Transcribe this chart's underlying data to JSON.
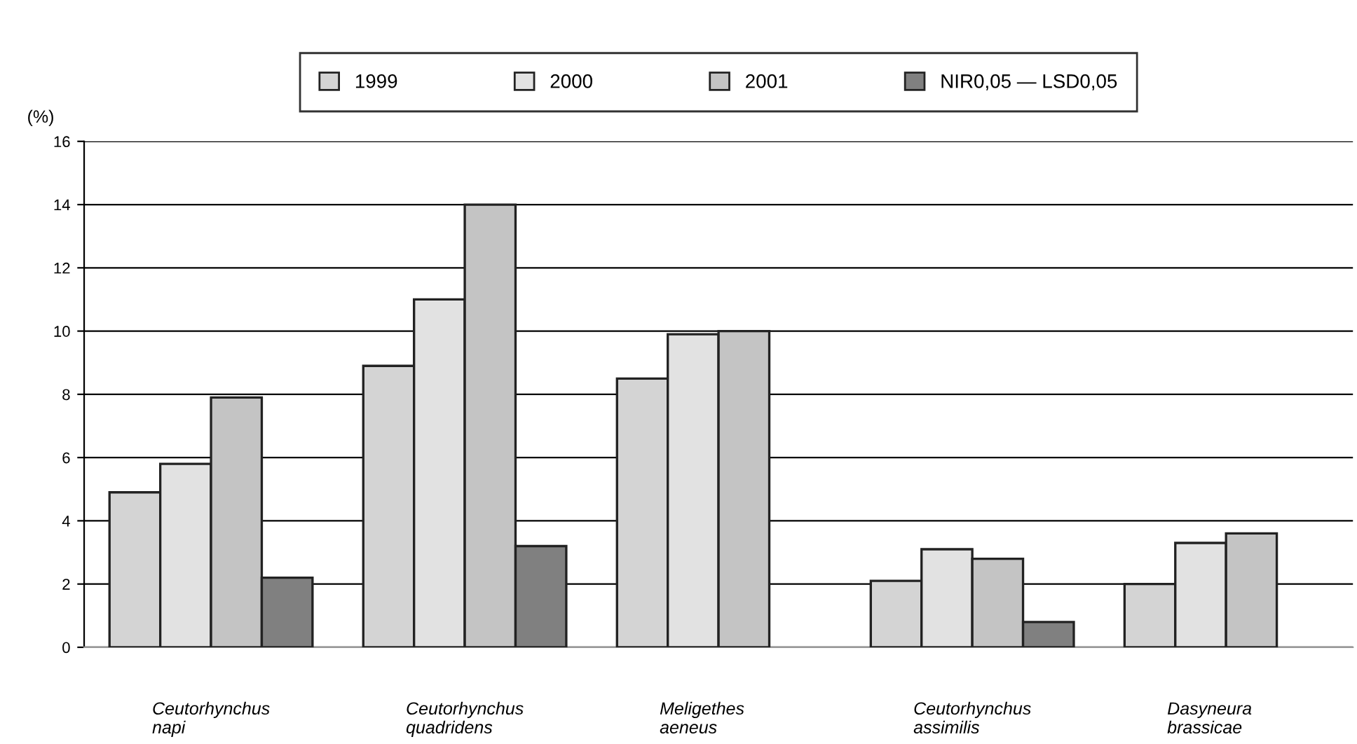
{
  "chart_data": {
    "type": "bar",
    "ylabel": "(%)",
    "categories": [
      "Ceutorhynchus\nnapi",
      "Ceutorhynchus\nquadridens",
      "Meligethes\naeneus",
      "Ceutorhynchus\nassimilis",
      "Dasyneura\nbrassicae"
    ],
    "series": [
      {
        "name": "1999",
        "color": "#d4d4d4",
        "values": [
          4.9,
          8.9,
          8.5,
          2.1,
          2.0
        ]
      },
      {
        "name": "2000",
        "color": "#e2e2e2",
        "values": [
          5.8,
          11.0,
          9.9,
          3.1,
          3.3
        ]
      },
      {
        "name": "2001",
        "color": "#c4c4c4",
        "values": [
          7.9,
          14.0,
          10.0,
          2.8,
          3.6
        ]
      },
      {
        "name": "NIR0,05 — LSD0,05",
        "color": "#808080",
        "values": [
          2.2,
          3.2,
          null,
          0.8,
          null
        ]
      }
    ],
    "ylim": [
      0,
      16
    ],
    "yticks": [
      0,
      2,
      4,
      6,
      8,
      10,
      12,
      14,
      16
    ],
    "grid": "y",
    "legend": "top"
  }
}
